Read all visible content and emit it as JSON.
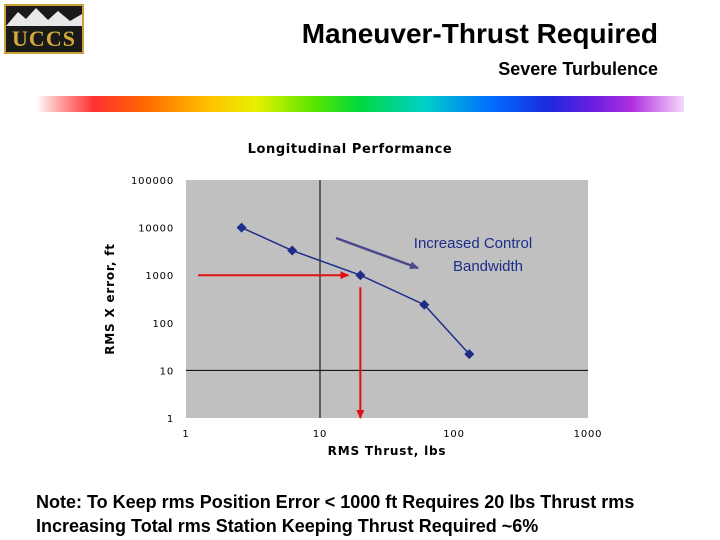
{
  "header": {
    "logo_text": "UCCS",
    "title": "Maneuver-Thrust Required",
    "subtitle": "Severe Turbulence"
  },
  "chart_data": {
    "type": "scatter",
    "title": "Longitudinal Performance",
    "xlabel": "RMS Thrust, lbs",
    "ylabel": "RMS X error, ft",
    "x_scale": "log",
    "y_scale": "log",
    "xlim": [
      1,
      1000
    ],
    "ylim": [
      1,
      100000
    ],
    "x_ticks": [
      "1",
      "10",
      "100",
      "1000"
    ],
    "y_ticks": [
      "100000",
      "10000",
      "1000",
      "100",
      "10",
      "1"
    ],
    "series": [
      {
        "x": [
          2.6,
          6.2,
          20,
          60,
          130
        ],
        "y": [
          10000,
          3300,
          1000,
          240,
          22
        ]
      }
    ],
    "annotation": {
      "line1": "Increased Control",
      "line2": "Bandwidth"
    },
    "grid": "major lines at x=10 and y=10",
    "colors": {
      "series": "#1d2d8a",
      "plot_bg": "#c0c0c0",
      "arrow_red": "#e01010",
      "trend_arrow": "#4a4a8a"
    }
  },
  "note": {
    "line1": "Note: To Keep rms Position Error < 1000 ft Requires 20 lbs Thrust rms",
    "line2": "Increasing Total rms Station Keeping Thrust Required ~6%"
  }
}
